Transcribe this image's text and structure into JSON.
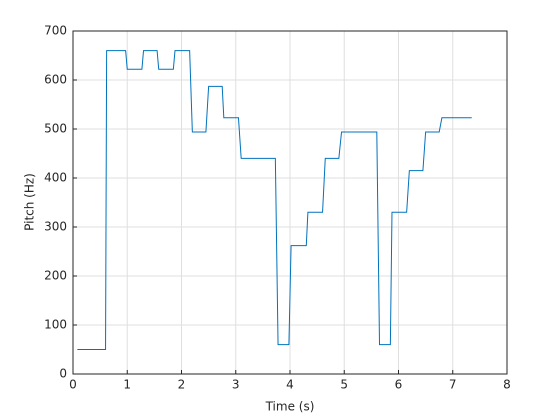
{
  "chart_data": {
    "type": "line",
    "xlabel": "Time (s)",
    "ylabel": "Pitch (Hz)",
    "x": [
      0.08,
      0.6,
      0.62,
      0.97,
      1.0,
      1.27,
      1.3,
      1.55,
      1.58,
      1.85,
      1.88,
      2.15,
      2.2,
      2.45,
      2.5,
      2.75,
      2.78,
      3.05,
      3.1,
      3.73,
      3.78,
      3.98,
      4.02,
      4.3,
      4.33,
      4.6,
      4.65,
      4.9,
      4.95,
      5.6,
      5.65,
      5.85,
      5.88,
      6.15,
      6.2,
      6.45,
      6.5,
      6.75,
      6.8,
      7.35
    ],
    "y": [
      50,
      50,
      660,
      660,
      622,
      622,
      660,
      660,
      622,
      622,
      660,
      660,
      494,
      494,
      587,
      587,
      523,
      523,
      440,
      440,
      60,
      60,
      262,
      262,
      330,
      330,
      440,
      440,
      494,
      494,
      60,
      60,
      330,
      330,
      415,
      415,
      494,
      494,
      523,
      523
    ],
    "color": "#0072bd",
    "xlim": [
      0,
      8
    ],
    "xticks": [
      0,
      1,
      2,
      3,
      4,
      5,
      6,
      7,
      8
    ],
    "ylim": [
      0,
      700
    ],
    "yticks": [
      0,
      100,
      200,
      300,
      400,
      500,
      600,
      700
    ],
    "grid": true
  }
}
